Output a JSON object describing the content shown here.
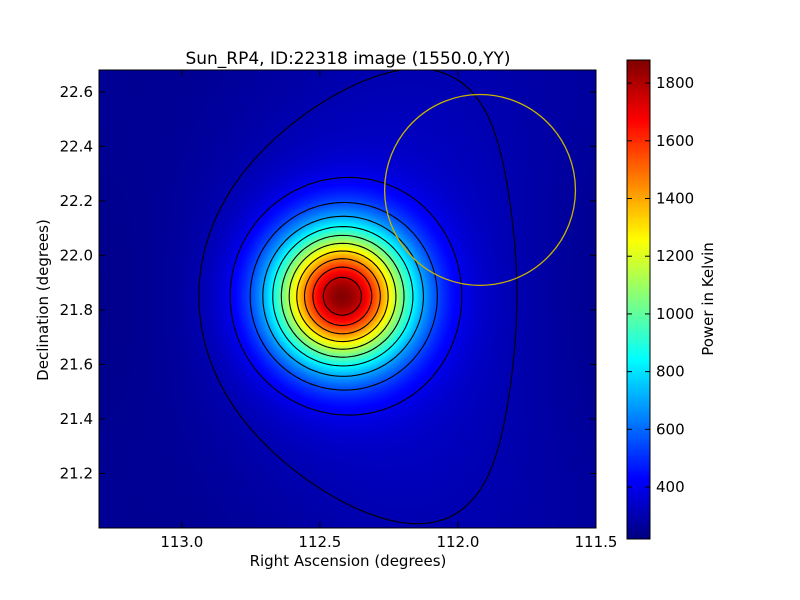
{
  "chart_data": {
    "type": "heatmap",
    "title": "Sun_RP4, ID:22318 image (1550.0,YY)",
    "xlabel": "Right Ascension (degrees)",
    "ylabel": "Declination (degrees)",
    "xlim": [
      113.3,
      111.5
    ],
    "ylim": [
      21.0,
      22.68
    ],
    "x_ticks": [
      113.0,
      112.5,
      112.0,
      111.5
    ],
    "x_tick_labels": [
      "113.0",
      "112.5",
      "112.0",
      "111.5"
    ],
    "y_ticks": [
      21.2,
      21.4,
      21.6,
      21.8,
      22.0,
      22.2,
      22.4,
      22.6
    ],
    "y_tick_labels": [
      "21.2",
      "21.4",
      "21.6",
      "21.8",
      "22.0",
      "22.2",
      "22.4",
      "22.6"
    ],
    "colormap": "jet",
    "colorbar": {
      "label": "Power in Kelvin",
      "range": [
        220,
        1880
      ],
      "ticks": [
        400,
        600,
        800,
        1000,
        1200,
        1400,
        1600,
        1800
      ],
      "tick_labels": [
        "400",
        "600",
        "800",
        "1000",
        "1200",
        "1400",
        "1600",
        "1800"
      ]
    },
    "source": {
      "ra": 112.42,
      "dec": 21.85,
      "peak": 1880,
      "background": 250
    },
    "contour_levels": [
      300,
      400,
      550,
      700,
      850,
      1000,
      1150,
      1300,
      1450,
      1600,
      1750
    ],
    "marker_circle": {
      "ra": 111.92,
      "dec": 22.24,
      "radius_deg": 0.35,
      "color": "#c8b400"
    }
  }
}
